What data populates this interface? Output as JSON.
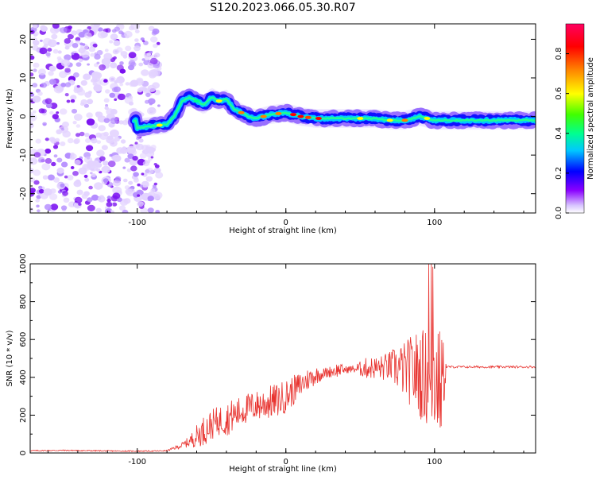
{
  "title": "S120.2023.066.05.30.R07",
  "chart_data": [
    {
      "type": "heatmap",
      "xlabel": "Height of straight line (km)",
      "ylabel": "Frequency (Hz)",
      "xlim": [
        -172,
        168
      ],
      "ylim": [
        -25,
        24
      ],
      "x_ticks": [
        -100,
        0,
        100
      ],
      "y_ticks": [
        -20,
        -10,
        0,
        10,
        20
      ],
      "colorbar": {
        "label": "Normalized spectral amplitude",
        "range": [
          0,
          0.95
        ],
        "ticks": [
          0.0,
          0.2,
          0.4,
          0.6,
          0.8
        ],
        "colors": [
          "#ffffff",
          "#e6d4ff",
          "#8a00ff",
          "#0000ff",
          "#00c8ff",
          "#00ff80",
          "#80ff00",
          "#ffff00",
          "#ff8000",
          "#ff0000",
          "#ff0060"
        ]
      },
      "ridge_center_hz": [
        [
          -100,
          -3
        ],
        [
          -90,
          -2.5
        ],
        [
          -80,
          -2
        ],
        [
          -75,
          0
        ],
        [
          -70,
          4
        ],
        [
          -65,
          5
        ],
        [
          -60,
          4
        ],
        [
          -55,
          3
        ],
        [
          -50,
          5
        ],
        [
          -45,
          4
        ],
        [
          -40,
          4.5
        ],
        [
          -35,
          2
        ],
        [
          -30,
          1
        ],
        [
          -25,
          0
        ],
        [
          -20,
          -0.5
        ],
        [
          -10,
          0.5
        ],
        [
          0,
          1
        ],
        [
          10,
          0
        ],
        [
          20,
          -0.5
        ],
        [
          40,
          -0.5
        ],
        [
          60,
          -0.5
        ],
        [
          70,
          -1
        ],
        [
          80,
          -1
        ],
        [
          90,
          0
        ],
        [
          100,
          -1
        ],
        [
          120,
          -1
        ],
        [
          168,
          -1
        ]
      ],
      "noise_region_x": [
        -172,
        -85
      ]
    },
    {
      "type": "line",
      "xlabel": "Height of straight line (km)",
      "ylabel": "SNR (10 * v/v)",
      "xlim": [
        -172,
        168
      ],
      "ylim": [
        0,
        1000
      ],
      "x_ticks": [
        -100,
        0,
        100
      ],
      "y_ticks": [
        0,
        200,
        400,
        600,
        800,
        1000
      ],
      "color": "#e8332f",
      "series": [
        {
          "x": [
            -172,
            -150,
            -130,
            -110,
            -90,
            -80,
            -70,
            -65,
            -60,
            -55,
            -50,
            -45,
            -40,
            -35,
            -30,
            -25,
            -20,
            -15,
            -10,
            -5,
            0,
            5,
            10,
            15,
            20,
            25,
            30,
            35,
            40,
            45,
            50,
            55,
            60,
            65,
            70,
            75,
            80,
            85,
            90,
            95,
            100,
            105,
            108,
            110,
            120,
            130,
            140,
            150,
            160,
            168
          ],
          "y": [
            12,
            14,
            12,
            10,
            10,
            12,
            40,
            60,
            90,
            120,
            150,
            170,
            180,
            200,
            220,
            240,
            250,
            260,
            270,
            280,
            300,
            330,
            360,
            390,
            410,
            420,
            430,
            440,
            440,
            445,
            445,
            450,
            450,
            450,
            460,
            450,
            440,
            430,
            420,
            400,
            380,
            360,
            455,
            455,
            455,
            455,
            455,
            455,
            455,
            455
          ],
          "spread": [
            3,
            3,
            3,
            3,
            3,
            3,
            15,
            30,
            60,
            80,
            80,
            80,
            90,
            90,
            80,
            80,
            80,
            90,
            90,
            90,
            90,
            80,
            70,
            60,
            50,
            30,
            30,
            40,
            20,
            20,
            40,
            60,
            60,
            70,
            80,
            120,
            150,
            200,
            240,
            260,
            280,
            300,
            8,
            6,
            6,
            6,
            6,
            6,
            6,
            6
          ]
        }
      ]
    }
  ]
}
